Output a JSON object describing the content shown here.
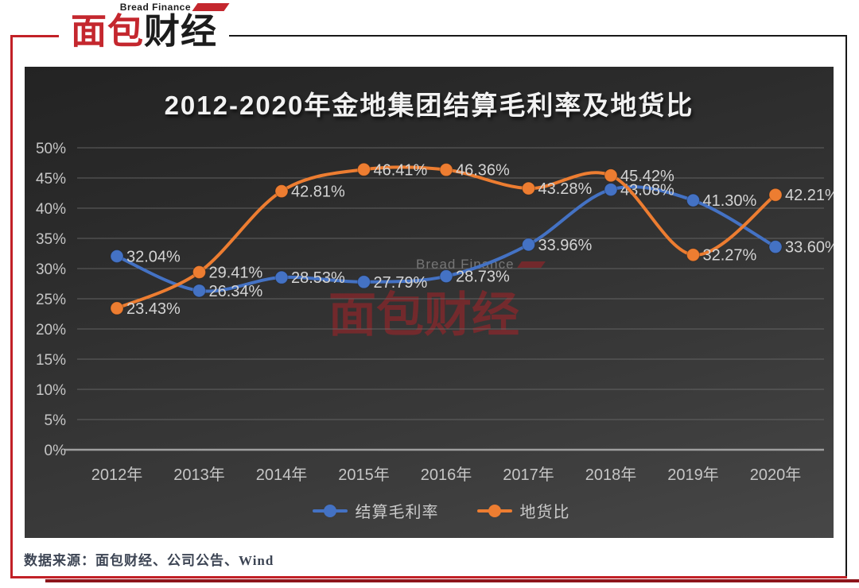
{
  "logo": {
    "subtitle": "Bread Finance",
    "title_red": "面包",
    "title_black": "财经"
  },
  "chart": {
    "title": "2012-2020年金地集团结算毛利率及地货比",
    "watermark": {
      "en": "Bread Finance",
      "zh": "面包财经"
    }
  },
  "chart_data": {
    "type": "line",
    "title": "2012-2020年金地集团结算毛利率及地货比",
    "categories": [
      "2012年",
      "2013年",
      "2014年",
      "2015年",
      "2016年",
      "2017年",
      "2018年",
      "2019年",
      "2020年"
    ],
    "series": [
      {
        "name": "结算毛利率",
        "color": "#4472C4",
        "values": [
          32.04,
          26.34,
          28.53,
          27.79,
          28.73,
          33.96,
          43.08,
          41.3,
          33.6
        ],
        "labels": [
          "32.04%",
          "26.34%",
          "28.53%",
          "27.79%",
          "28.73%",
          "33.96%",
          "43.08%",
          "41.30%",
          "33.60%"
        ]
      },
      {
        "name": "地货比",
        "color": "#ED7D31",
        "values": [
          23.43,
          29.41,
          42.81,
          46.41,
          46.36,
          43.28,
          45.42,
          32.27,
          42.21
        ],
        "labels": [
          "23.43%",
          "29.41%",
          "42.81%",
          "46.41%",
          "46.36%",
          "43.28%",
          "45.42%",
          "32.27%",
          "42.21%"
        ]
      }
    ],
    "yticks": [
      "0%",
      "5%",
      "10%",
      "15%",
      "20%",
      "25%",
      "30%",
      "35%",
      "40%",
      "45%",
      "50%"
    ],
    "ytick_step": 5,
    "ylim": [
      0,
      50
    ],
    "xlabel": "",
    "ylabel": "",
    "grid": true,
    "legend_position": "bottom",
    "line_style": "smooth",
    "marker": "circle"
  },
  "footer": {
    "source": "数据来源：面包财经、公司公告、Wind"
  },
  "colors": {
    "frame_red": "#c22127",
    "frame_dark_red": "#8d151b",
    "frame_black": "#181818",
    "logo_red": "#c4272e",
    "logo_black": "#1c1c1c",
    "title": "#f2f2f2",
    "grid": "#6a6a6a",
    "axis": "#9f9f9f",
    "tick_label": "#c6c6c6",
    "data_label": "#d4d4d4",
    "legend_text": "#c9c9c9",
    "watermark_red": "rgba(178,32,38,0.5)",
    "watermark_gray": "rgba(175,175,175,0.55)",
    "source_text": "#3d4554",
    "series_blue": "#4472C4",
    "series_orange": "#ED7D31"
  }
}
